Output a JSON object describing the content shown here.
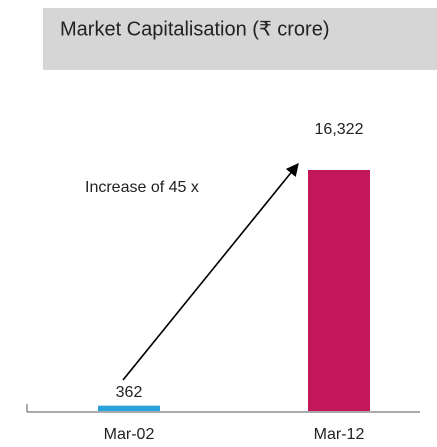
{
  "chart_data": {
    "type": "bar",
    "title": "Market Capitalisation (₹ crore)",
    "annotation": "Increase of 45 x",
    "categories": [
      "Mar-02",
      "Mar-12"
    ],
    "values": [
      362,
      16322
    ],
    "value_labels": [
      "362",
      "16,322"
    ],
    "colors": [
      "#29a3dc",
      "#c2185b"
    ]
  }
}
